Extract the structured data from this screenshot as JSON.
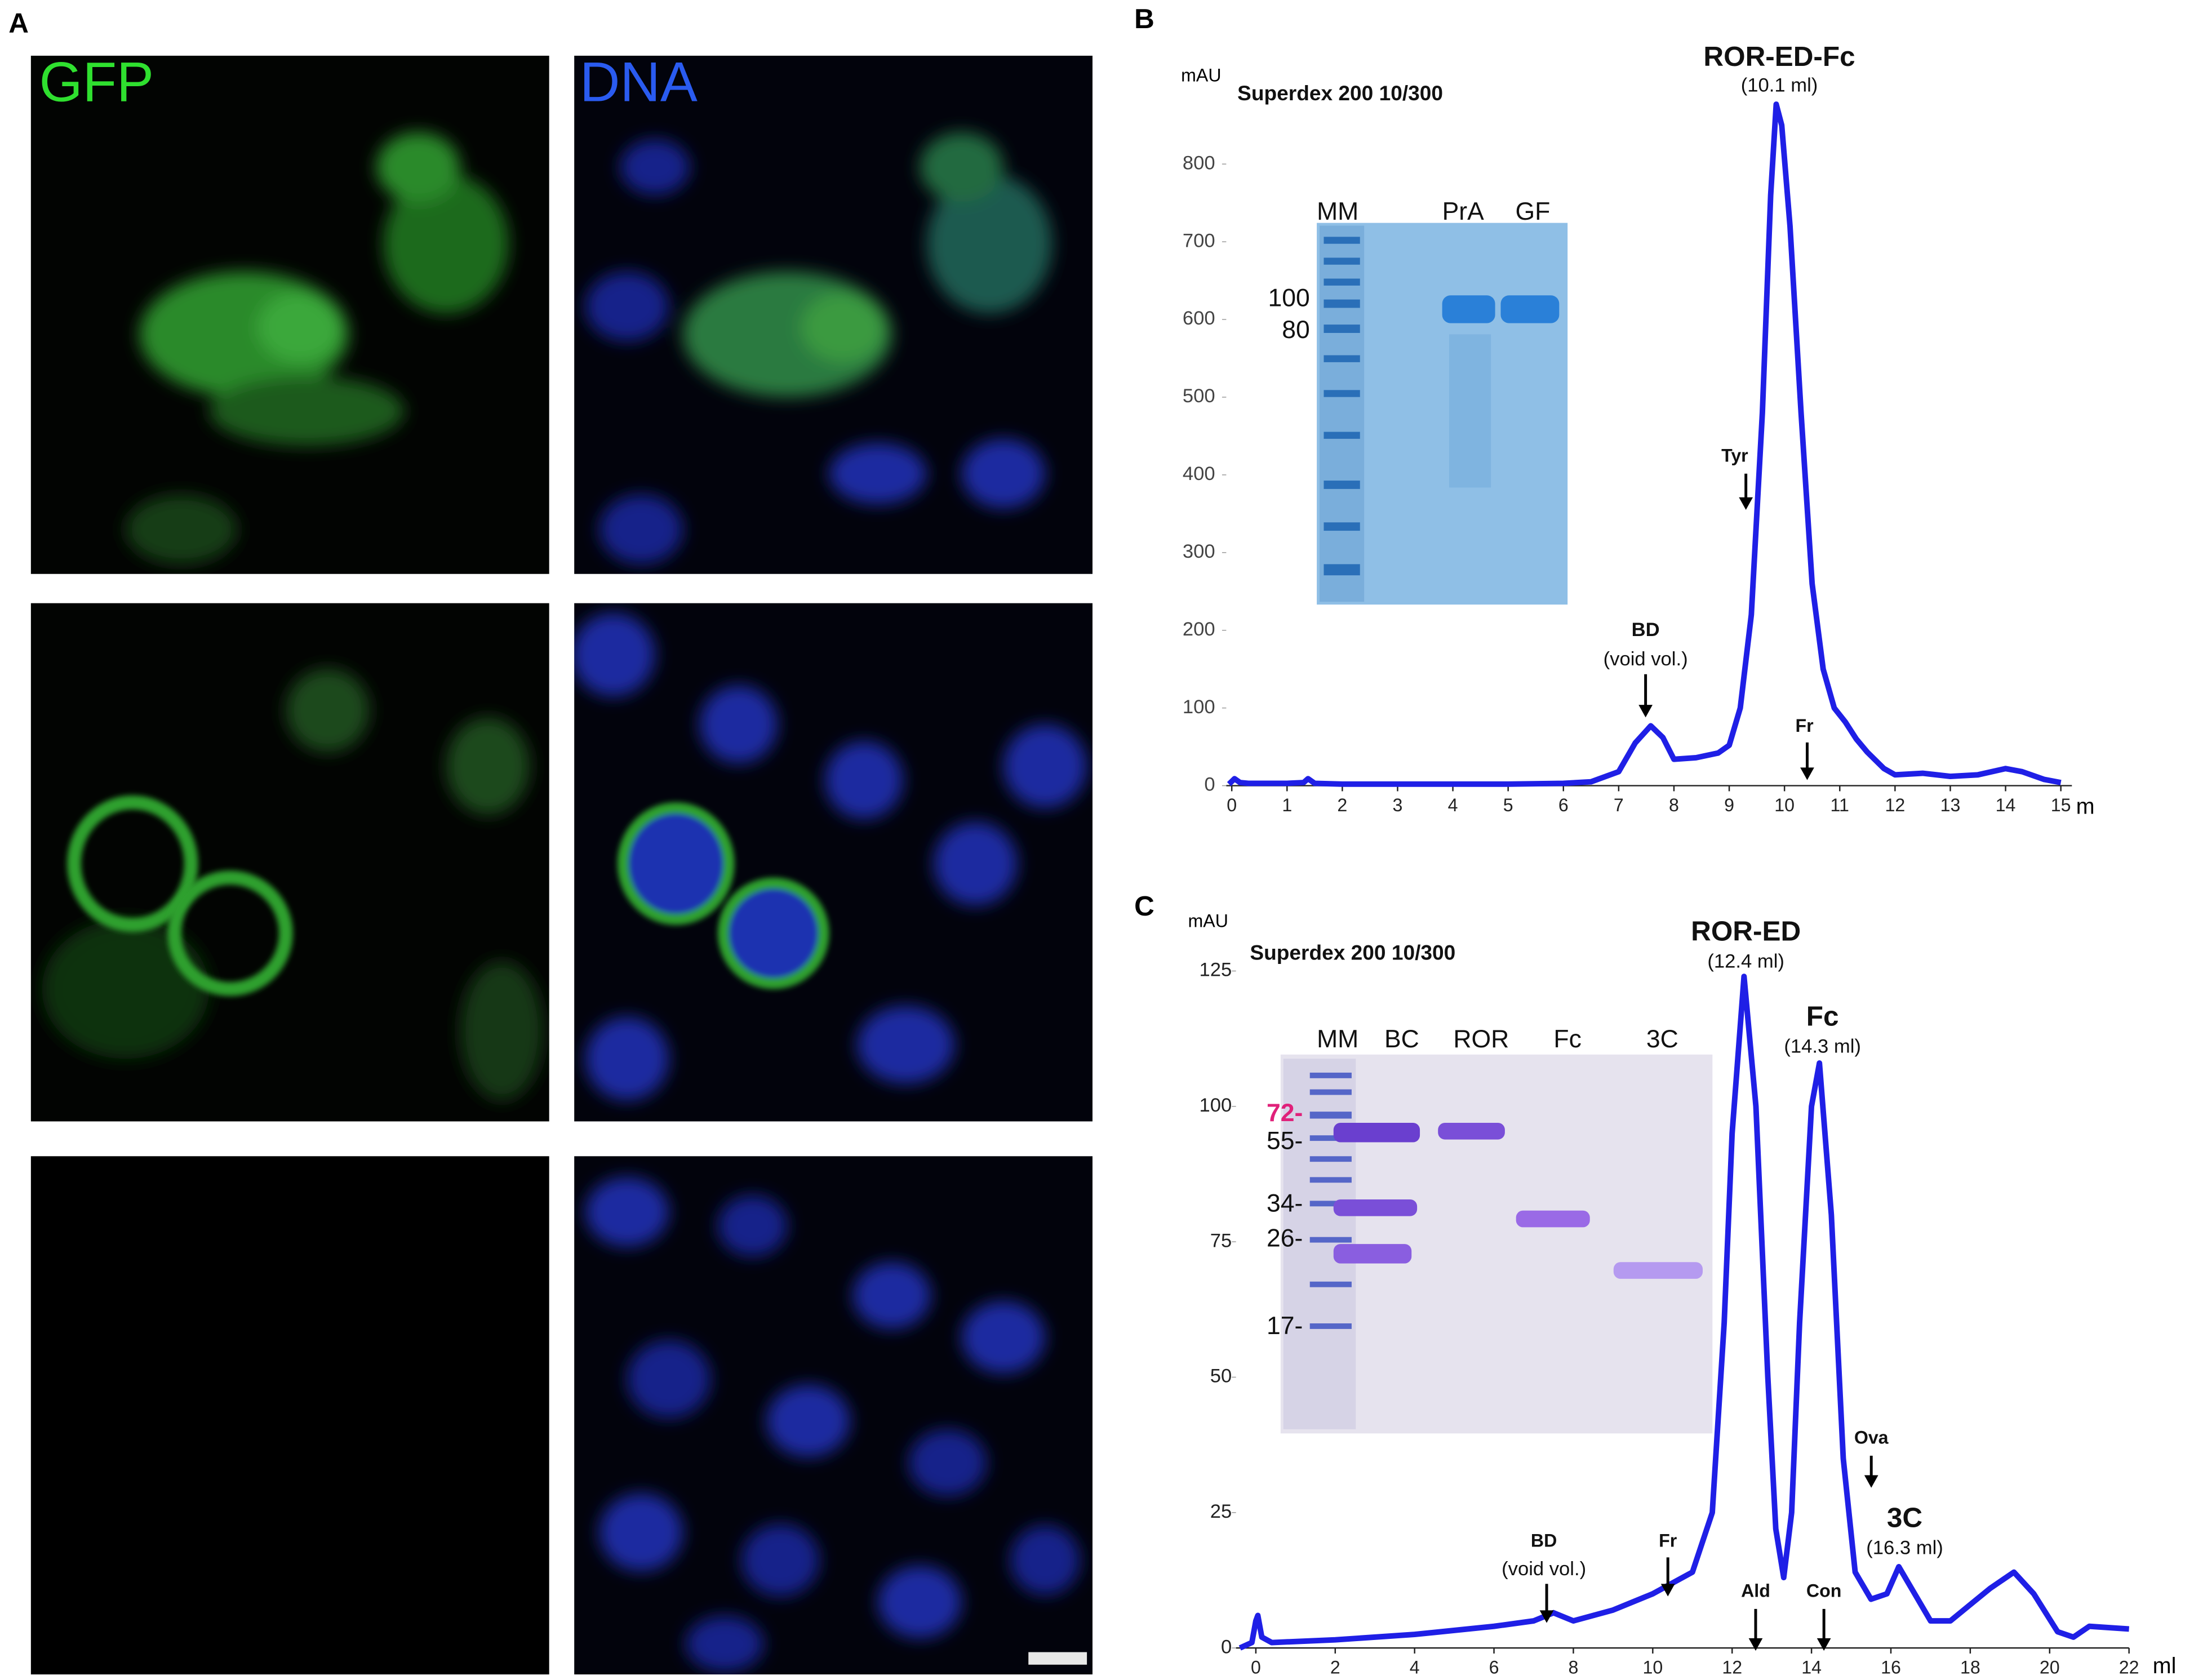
{
  "panel_labels": [
    "A",
    "B",
    "C"
  ],
  "panel_a": {
    "channels": [
      "GFP",
      "DNA"
    ]
  },
  "chart_data": [
    {
      "type": "line",
      "ylabel": "mAU",
      "xlabel": "m",
      "color": "#1f1fe6",
      "x": [
        -0.05,
        0.05,
        0.15,
        0.3,
        1.0,
        1.3,
        1.38,
        1.5,
        2,
        3,
        4,
        5,
        6,
        6.5,
        7.0,
        7.3,
        7.58,
        7.8,
        8.0,
        8.4,
        8.8,
        9.0,
        9.2,
        9.4,
        9.6,
        9.75,
        9.85,
        9.95,
        10.1,
        10.3,
        10.5,
        10.7,
        10.9,
        11.1,
        11.3,
        11.5,
        11.8,
        12.0,
        12.5,
        13.0,
        13.5,
        14.0,
        14.3,
        14.7,
        15.0
      ],
      "values": [
        2,
        9,
        4,
        3,
        3,
        4,
        9,
        3,
        2,
        2,
        2,
        2,
        3,
        5,
        18,
        55,
        77,
        62,
        34,
        36,
        42,
        52,
        100,
        220,
        480,
        760,
        877,
        850,
        720,
        480,
        260,
        150,
        100,
        82,
        60,
        43,
        22,
        14,
        16,
        12,
        14,
        22,
        18,
        8,
        4
      ],
      "xlim": [
        -0.1,
        15.2
      ],
      "ylim": [
        0,
        900
      ],
      "xticks": [
        0,
        1,
        2,
        3,
        4,
        5,
        6,
        7,
        8,
        9,
        10,
        11,
        12,
        13,
        14,
        15
      ],
      "yticks": [
        0,
        100,
        200,
        300,
        400,
        500,
        600,
        700,
        800
      ],
      "annotations": [
        "Superdex 200 10/300",
        "ROR-ED-Fc",
        "(10.1 ml)",
        "BD",
        "(void vol.)",
        "Tyr",
        "Fr"
      ],
      "inset_lanes": [
        "MM",
        "PrA",
        "GF"
      ],
      "inset_markers": [
        "100",
        "80"
      ]
    },
    {
      "type": "line",
      "ylabel": "mAU",
      "xlabel": "ml",
      "color": "#1f1fe6",
      "x": [
        -0.4,
        -0.1,
        0.0,
        0.05,
        0.15,
        0.4,
        2,
        4,
        6,
        7,
        7.5,
        8,
        9,
        10,
        11,
        11.5,
        11.8,
        12.0,
        12.3,
        12.6,
        12.9,
        13.1,
        13.3,
        13.5,
        13.7,
        14.0,
        14.2,
        14.5,
        14.8,
        15.1,
        15.5,
        15.9,
        16.2,
        16.6,
        17.0,
        17.5,
        18.0,
        18.5,
        19.1,
        19.6,
        20.2,
        20.6,
        21.0,
        22.0
      ],
      "values": [
        0,
        1,
        5,
        6,
        2,
        1,
        1.5,
        2.5,
        4,
        5,
        6.5,
        5,
        7,
        10,
        14,
        25,
        60,
        95,
        124,
        100,
        50,
        22,
        13,
        25,
        60,
        100,
        108,
        80,
        35,
        14,
        9,
        10,
        15,
        10,
        5,
        5,
        8,
        11,
        14,
        10,
        3,
        2,
        4,
        3.5
      ],
      "xlim": [
        -0.5,
        22
      ],
      "ylim": [
        0,
        130
      ],
      "xticks": [
        0,
        2,
        4,
        6,
        8,
        10,
        12,
        14,
        16,
        18,
        20,
        22
      ],
      "yticks": [
        0,
        25,
        50,
        75,
        100,
        125
      ],
      "annotations": [
        "Superdex 200 10/300",
        "ROR-ED",
        "(12.4 ml)",
        "Fc",
        "(14.3 ml)",
        "Ova",
        "3C",
        "(16.3 ml)",
        "BD",
        "(void vol.)",
        "Fr",
        "Ald",
        "Con"
      ],
      "inset_lanes": [
        "MM",
        "BC",
        "ROR",
        "Fc",
        "3C"
      ],
      "inset_markers": [
        "72-",
        "55-",
        "34-",
        "26-",
        "17-"
      ]
    }
  ]
}
